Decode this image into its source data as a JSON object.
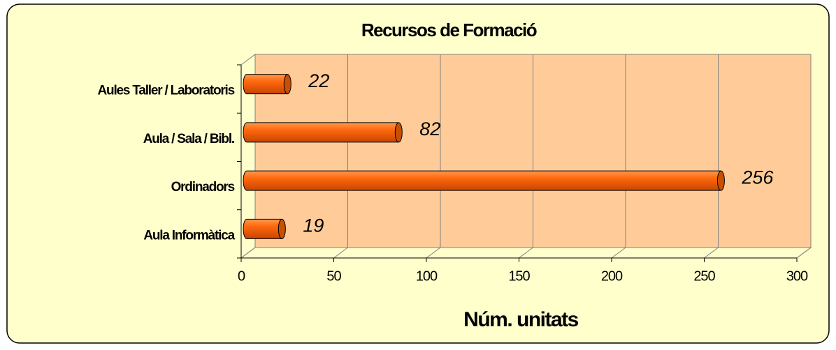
{
  "chart_data": {
    "type": "bar",
    "orientation": "horizontal",
    "title": "Recursos de Formació",
    "x_label": "Núm. unitats",
    "categories": [
      "Aules Taller / Laboratoris",
      "Aula / Sala / Bibl.",
      "Ordinadors",
      "Aula Informàtica"
    ],
    "values": [
      22,
      82,
      256,
      19
    ],
    "color": "#ff6600",
    "xlim": [
      0,
      300
    ],
    "xticks": [
      0,
      50,
      100,
      150,
      200,
      250,
      300
    ],
    "grid": true
  }
}
